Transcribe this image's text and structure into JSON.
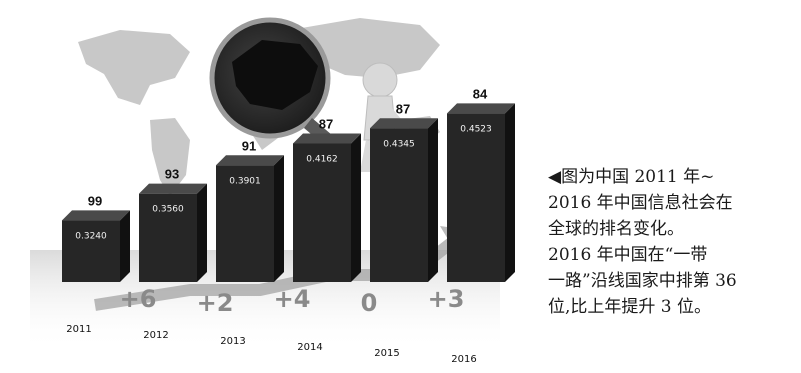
{
  "chart_data": {
    "type": "bar",
    "categories": [
      "2011",
      "2012",
      "2013",
      "2014",
      "2015",
      "2016"
    ],
    "values": [
      0.324,
      0.356,
      0.3901,
      0.4162,
      0.4345,
      0.4523
    ],
    "value_labels": [
      "0.3240",
      "0.3560",
      "0.3901",
      "0.4162",
      "0.4345",
      "0.4523"
    ],
    "ranks": [
      "99",
      "93",
      "91",
      "87",
      "87",
      "84"
    ],
    "rank_changes": [
      "+6",
      "+2",
      "+4",
      "0",
      "+3"
    ],
    "ylim": [
      0.25,
      0.46
    ],
    "grid": false,
    "legend": "none",
    "colors": {
      "bar_front": "#262626",
      "bar_side": "#111111",
      "bar_top": "#4a4a4a",
      "change_text": "#8a8a8a"
    }
  },
  "caption": {
    "lines": [
      "◀图为中国 2011 年~",
      "2016 年中国信息社会在",
      "全球的排名变化。",
      "2016 年中国在“一带",
      "一路”沿线国家中排第 36",
      "位,比上年提升 3 位。"
    ]
  },
  "icons": [
    "world-map-icon",
    "magnifying-glass-icon",
    "figure-icon",
    "trend-arrow-icon"
  ]
}
